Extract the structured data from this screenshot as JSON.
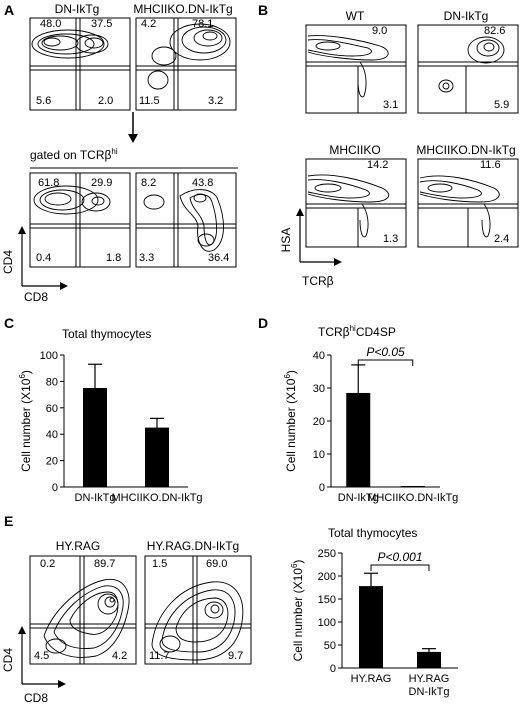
{
  "panels": {
    "A": {
      "letter": "A",
      "top_plots": [
        {
          "title": "DN-IkTg",
          "q": {
            "ul": "48.0",
            "ur": "37.5",
            "ll": "5.6",
            "lr": "2.0"
          }
        },
        {
          "title": "MHCIIKO.DN-IkTg",
          "q": {
            "ul": "4.2",
            "ur": "78.1",
            "ll": "11.5",
            "lr": "3.2"
          }
        }
      ],
      "gate_label_main": "gated on TCRβ",
      "gate_label_sup": "hi",
      "bottom_plots": [
        {
          "q": {
            "ul": "61.8",
            "ur": "29.9",
            "ll": "0.4",
            "lr": "1.8"
          }
        },
        {
          "q": {
            "ul": "8.2",
            "ur": "43.8",
            "ll": "3.3",
            "lr": "36.4"
          }
        }
      ],
      "y_axis": "CD4",
      "x_axis": "CD8"
    },
    "B": {
      "letter": "B",
      "plots": [
        {
          "title": "WT",
          "top_value": "9.0",
          "bottom_value": "3.1"
        },
        {
          "title": "DN-IkTg",
          "top_value": "82.6",
          "bottom_value": "5.9"
        },
        {
          "title": "MHCIIKO",
          "top_value": "14.2",
          "bottom_value": "1.3"
        },
        {
          "title": "MHCIIKO.DN-IkTg",
          "top_value": "11.6",
          "bottom_value": "2.4"
        }
      ],
      "y_axis": "HSA",
      "x_axis": "TCRβ"
    },
    "C": {
      "letter": "C"
    },
    "D": {
      "letter": "D"
    },
    "E": {
      "letter": "E",
      "plots": [
        {
          "title": "HY.RAG",
          "q": {
            "ul": "0.2",
            "ur": "89.7",
            "ll": "4.5",
            "lr": "4.2"
          }
        },
        {
          "title": "HY.RAG.DN-IkTg",
          "q": {
            "ul": "1.5",
            "ur": "69.0",
            "ll": "11.7",
            "lr": "9.7"
          }
        }
      ],
      "y_axis": "CD4",
      "x_axis": "CD8"
    }
  },
  "chart_data": [
    {
      "type": "bar",
      "panel": "C",
      "title": "Total thymocytes",
      "categories": [
        "DN-IkTg",
        "MHCIIKO.DN-IkTg"
      ],
      "values": [
        75,
        45
      ],
      "errors": [
        18,
        7
      ],
      "ylabel_main": "Cell number (X10",
      "ylabel_sup": "6",
      "ylabel_end": ")",
      "ylim": [
        0,
        100
      ],
      "yticks": [
        "0",
        "20",
        "40",
        "60",
        "80",
        "100"
      ],
      "color": "#000000"
    },
    {
      "type": "bar",
      "panel": "D",
      "title_main": "TCRβ",
      "title_sup": "hi",
      "title_end": "CD4SP",
      "categories": [
        "DN-IkTg",
        "MHCIIKO.DN-IkTg"
      ],
      "values": [
        28.5,
        0.3
      ],
      "errors": [
        8.5,
        0
      ],
      "ylabel_main": "Cell number (X10",
      "ylabel_sup": "6",
      "ylabel_end": ")",
      "ylim": [
        0,
        40
      ],
      "yticks": [
        "0",
        "10",
        "20",
        "30",
        "40"
      ],
      "annotation": "P<0.05",
      "color": "#000000"
    },
    {
      "type": "bar",
      "panel": "E",
      "title": "Total thymocytes",
      "categories": [
        "HY.RAG",
        "HY.RAG DN-IkTg"
      ],
      "category_lines": [
        [
          "HY.RAG"
        ],
        [
          "HY.RAG",
          "DN-IkTg"
        ]
      ],
      "values": [
        178,
        35
      ],
      "errors": [
        28,
        7
      ],
      "ylabel_main": "Cell number (X10",
      "ylabel_sup": "6",
      "ylabel_end": ")",
      "ylim": [
        0,
        250
      ],
      "yticks": [
        "0",
        "50",
        "100",
        "150",
        "200",
        "250"
      ],
      "annotation": "P<0.001",
      "color": "#000000"
    }
  ]
}
